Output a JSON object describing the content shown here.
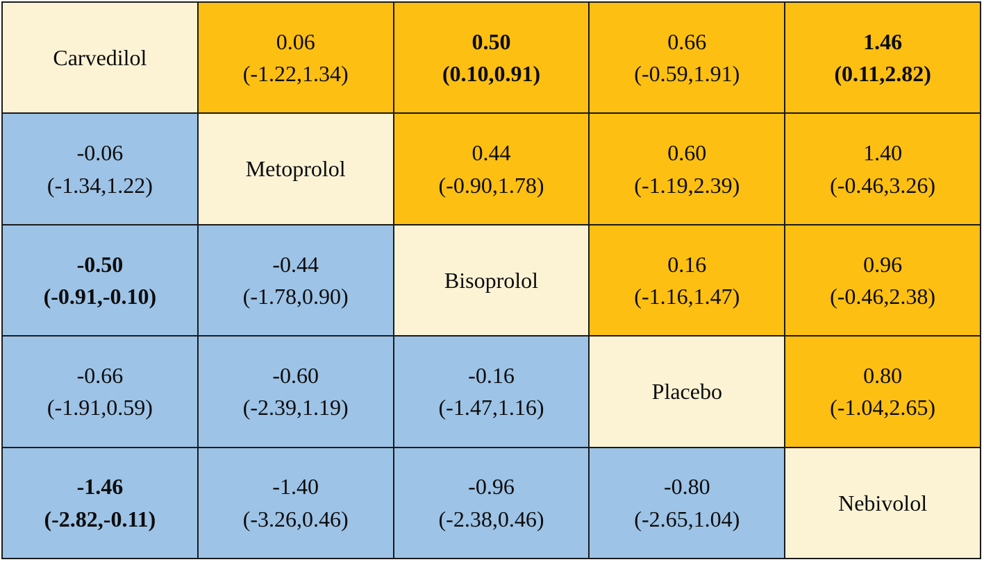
{
  "colors": {
    "upper_triangle": "#FCBF12",
    "lower_triangle": "#9DC3E6",
    "diagonal": "#FCF3D5",
    "border": "#1a1a1a",
    "page_background": "#ffffff"
  },
  "chart_data": {
    "type": "table",
    "subtype": "network-meta-analysis league table (mean difference with 95% CI)",
    "treatments": [
      "Carvedilol",
      "Metoprolol",
      "Bisoprolol",
      "Placebo",
      "Nebivolol"
    ],
    "legend_hint": "upper triangle = orange cells, lower triangle = blue cells, diagonal = treatment names, bold = significant",
    "rows": [
      {
        "cells": [
          {
            "type": "diag",
            "label": "Carvedilol"
          },
          {
            "type": "est",
            "value": "0.06",
            "ci": "(-1.22,1.34)",
            "lower": -1.22,
            "upper": 1.34,
            "bold": false
          },
          {
            "type": "est",
            "value": "0.50",
            "ci": "(0.10,0.91)",
            "lower": 0.1,
            "upper": 0.91,
            "bold": true
          },
          {
            "type": "est",
            "value": "0.66",
            "ci": "(-0.59,1.91)",
            "lower": -0.59,
            "upper": 1.91,
            "bold": false
          },
          {
            "type": "est",
            "value": "1.46",
            "ci": "(0.11,2.82)",
            "lower": 0.11,
            "upper": 2.82,
            "bold": true
          }
        ]
      },
      {
        "cells": [
          {
            "type": "est",
            "value": "-0.06",
            "ci": "(-1.34,1.22)",
            "lower": -1.34,
            "upper": 1.22,
            "bold": false
          },
          {
            "type": "diag",
            "label": "Metoprolol"
          },
          {
            "type": "est",
            "value": "0.44",
            "ci": "(-0.90,1.78)",
            "lower": -0.9,
            "upper": 1.78,
            "bold": false
          },
          {
            "type": "est",
            "value": "0.60",
            "ci": "(-1.19,2.39)",
            "lower": -1.19,
            "upper": 2.39,
            "bold": false
          },
          {
            "type": "est",
            "value": "1.40",
            "ci": "(-0.46,3.26)",
            "lower": -0.46,
            "upper": 3.26,
            "bold": false
          }
        ]
      },
      {
        "cells": [
          {
            "type": "est",
            "value": "-0.50",
            "ci": "(-0.91,-0.10)",
            "lower": -0.91,
            "upper": -0.1,
            "bold": true
          },
          {
            "type": "est",
            "value": "-0.44",
            "ci": "(-1.78,0.90)",
            "lower": -1.78,
            "upper": 0.9,
            "bold": false
          },
          {
            "type": "diag",
            "label": "Bisoprolol"
          },
          {
            "type": "est",
            "value": "0.16",
            "ci": "(-1.16,1.47)",
            "lower": -1.16,
            "upper": 1.47,
            "bold": false
          },
          {
            "type": "est",
            "value": "0.96",
            "ci": "(-0.46,2.38)",
            "lower": -0.46,
            "upper": 2.38,
            "bold": false
          }
        ]
      },
      {
        "cells": [
          {
            "type": "est",
            "value": "-0.66",
            "ci": "(-1.91,0.59)",
            "lower": -1.91,
            "upper": 0.59,
            "bold": false
          },
          {
            "type": "est",
            "value": "-0.60",
            "ci": "(-2.39,1.19)",
            "lower": -2.39,
            "upper": 1.19,
            "bold": false
          },
          {
            "type": "est",
            "value": "-0.16",
            "ci": "(-1.47,1.16)",
            "lower": -1.47,
            "upper": 1.16,
            "bold": false
          },
          {
            "type": "diag",
            "label": "Placebo"
          },
          {
            "type": "est",
            "value": "0.80",
            "ci": "(-1.04,2.65)",
            "lower": -1.04,
            "upper": 2.65,
            "bold": false
          }
        ]
      },
      {
        "cells": [
          {
            "type": "est",
            "value": "-1.46",
            "ci": "(-2.82,-0.11)",
            "lower": -2.82,
            "upper": -0.11,
            "bold": true
          },
          {
            "type": "est",
            "value": "-1.40",
            "ci": "(-3.26,0.46)",
            "lower": -3.26,
            "upper": 0.46,
            "bold": false
          },
          {
            "type": "est",
            "value": "-0.96",
            "ci": "(-2.38,0.46)",
            "lower": -2.38,
            "upper": 0.46,
            "bold": false
          },
          {
            "type": "est",
            "value": "-0.80",
            "ci": "(-2.65,1.04)",
            "lower": -2.65,
            "upper": 1.04,
            "bold": false
          },
          {
            "type": "diag",
            "label": "Nebivolol"
          }
        ]
      }
    ]
  }
}
